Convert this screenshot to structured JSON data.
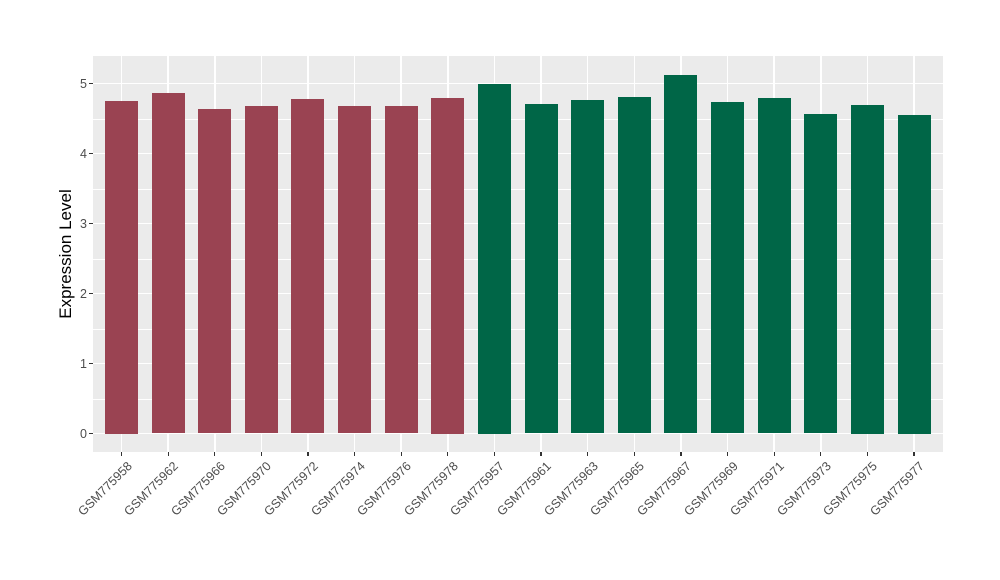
{
  "figure": {
    "background": "#FFFFFF",
    "panel_background": "#EBEBEB",
    "gridline_color": "#FFFFFF",
    "axis_text_color": "#4D4D4D",
    "axis_title_color": "#000000"
  },
  "chart_data": {
    "type": "bar",
    "title": "",
    "xlabel": "",
    "ylabel": "Expression Level",
    "ylim": [
      -0.26,
      5.39
    ],
    "yticks": [
      0,
      1,
      2,
      3,
      4,
      5
    ],
    "minor_yticks": [
      0.5,
      1.5,
      2.5,
      3.5,
      4.5
    ],
    "grid": "major-and-minor-horizontal-plus-major-vertical",
    "legend_position": "none",
    "categories": [
      "GSM775958",
      "GSM775962",
      "GSM775966",
      "GSM775970",
      "GSM775972",
      "GSM775974",
      "GSM775976",
      "GSM775978",
      "GSM775957",
      "GSM775961",
      "GSM775963",
      "GSM775965",
      "GSM775967",
      "GSM775969",
      "GSM775971",
      "GSM775973",
      "GSM775975",
      "GSM775977"
    ],
    "values": [
      4.75,
      4.86,
      4.63,
      4.68,
      4.78,
      4.68,
      4.68,
      4.8,
      5.0,
      4.71,
      4.77,
      4.81,
      5.12,
      4.74,
      4.79,
      4.56,
      4.7,
      4.55
    ],
    "groups": [
      "group1",
      "group1",
      "group1",
      "group1",
      "group1",
      "group1",
      "group1",
      "group1",
      "group2",
      "group2",
      "group2",
      "group2",
      "group2",
      "group2",
      "group2",
      "group2",
      "group2",
      "group2"
    ],
    "palette": {
      "group1": "#9A4352",
      "group2": "#006647"
    }
  }
}
